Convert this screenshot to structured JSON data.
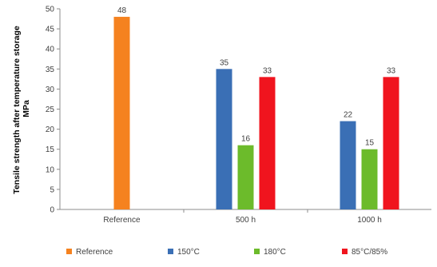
{
  "chart_data": {
    "type": "bar",
    "title": "",
    "ylabel_line1": "Tensile strength after temperature storage",
    "ylabel_line2": "MPa",
    "xlabel": "",
    "ylim": [
      0,
      50
    ],
    "yticks": [
      0,
      5,
      10,
      15,
      20,
      25,
      30,
      35,
      40,
      45,
      50
    ],
    "grid": false,
    "legend_position": "bottom",
    "categories": [
      "Reference",
      "500 h",
      "1000 h"
    ],
    "series": [
      {
        "name": "Reference",
        "color": "#F5821F",
        "values": [
          48,
          null,
          null
        ]
      },
      {
        "name": "150°C",
        "color": "#3A6FB5",
        "values": [
          null,
          35,
          22
        ]
      },
      {
        "name": "180°C",
        "color": "#6CBB2B",
        "values": [
          null,
          16,
          15
        ]
      },
      {
        "name": "85°C/85%",
        "color": "#F0141E",
        "values": [
          null,
          33,
          33
        ]
      }
    ]
  }
}
